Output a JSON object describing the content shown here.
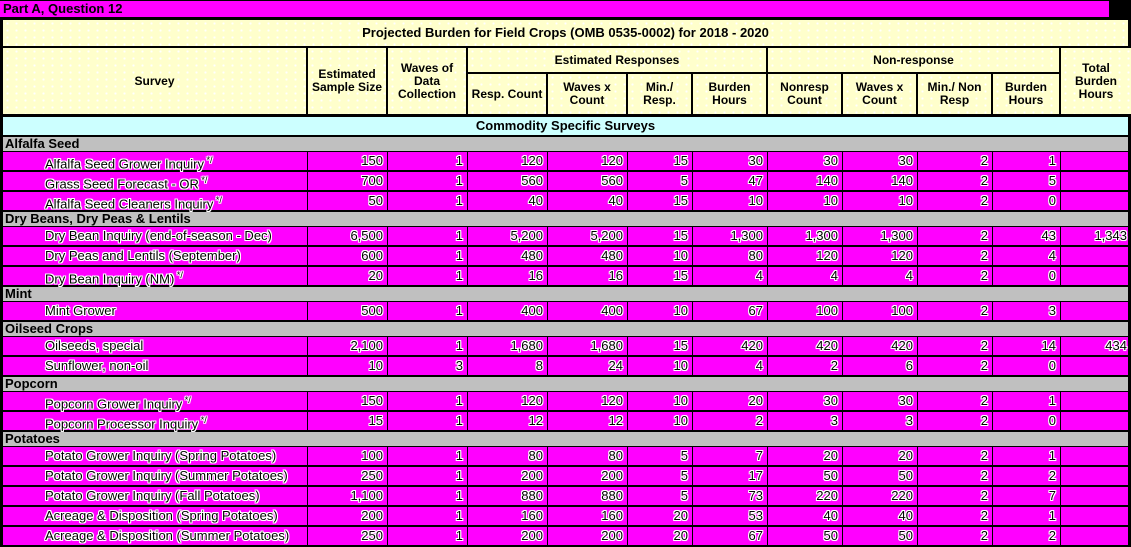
{
  "colors": {
    "row_bg": "#FF00FF",
    "header_bg": "#FFFFCC",
    "band_bg": "#CCFFFF",
    "section_bg": "#C0C0C0",
    "grid_line": "#000000"
  },
  "page_title": "Part A, Question 12",
  "table": {
    "title": "Projected Burden for Field Crops (OMB 0535-0002) for 2018 - 2020",
    "band": "Commodity Specific Surveys",
    "columns": {
      "survey": "Survey",
      "sample_size": "Estimated Sample Size",
      "waves": "Waves of Data Collection",
      "est_responses_group": "Estimated Responses",
      "resp_count": "Resp. Count",
      "resp_waves_x_count": "Waves x Count",
      "min_resp": "Min./ Resp.",
      "resp_burden_hours": "Burden Hours",
      "nonresponse_group": "Non-response",
      "nonresp_count": "Nonresp Count",
      "nonresp_waves_x_count": "Waves x Count",
      "min_nonresp": "Min./ Non Resp",
      "nonresp_burden_hours": "Burden Hours",
      "total_burden_hours": "Total Burden Hours"
    },
    "sections": [
      {
        "name": "Alfalfa Seed",
        "rows": [
          {
            "survey": "Alfalfa Seed Grower  Inquiry",
            "footnote": "*/",
            "values": [
              "150",
              "1",
              "120",
              "120",
              "15",
              "30",
              "30",
              "30",
              "2",
              "1",
              ""
            ]
          },
          {
            "survey": "Grass Seed Forecast - OR",
            "footnote": "*/",
            "values": [
              "700",
              "1",
              "560",
              "560",
              "5",
              "47",
              "140",
              "140",
              "2",
              "5",
              ""
            ]
          },
          {
            "survey": "Alfalfa Seed Cleaners Inquiry",
            "footnote": "*/",
            "values": [
              "50",
              "1",
              "40",
              "40",
              "15",
              "10",
              "10",
              "10",
              "2",
              "0",
              ""
            ]
          }
        ]
      },
      {
        "name": "Dry Beans, Dry Peas & Lentils",
        "rows": [
          {
            "survey": "Dry Bean Inquiry (end-of-season - Dec)",
            "footnote": "",
            "values": [
              "6,500",
              "1",
              "5,200",
              "5,200",
              "15",
              "1,300",
              "1,300",
              "1,300",
              "2",
              "43",
              "1,343"
            ]
          },
          {
            "survey": "Dry Peas and Lentils (September)",
            "footnote": "",
            "values": [
              "600",
              "1",
              "480",
              "480",
              "10",
              "80",
              "120",
              "120",
              "2",
              "4",
              ""
            ]
          },
          {
            "survey": "Dry Bean Inquiry (NM)",
            "footnote": "*/",
            "values": [
              "20",
              "1",
              "16",
              "16",
              "15",
              "4",
              "4",
              "4",
              "2",
              "0",
              ""
            ]
          }
        ]
      },
      {
        "name": "Mint",
        "rows": [
          {
            "survey": "Mint Grower",
            "footnote": "",
            "values": [
              "500",
              "1",
              "400",
              "400",
              "10",
              "67",
              "100",
              "100",
              "2",
              "3",
              ""
            ]
          }
        ]
      },
      {
        "name": "Oilseed Crops",
        "rows": [
          {
            "survey": "Oilseeds, special",
            "footnote": "",
            "values": [
              "2,100",
              "1",
              "1,680",
              "1,680",
              "15",
              "420",
              "420",
              "420",
              "2",
              "14",
              "434"
            ]
          },
          {
            "survey": "Sunflower, non-oil",
            "footnote": "",
            "values": [
              "10",
              "3",
              "8",
              "24",
              "10",
              "4",
              "2",
              "6",
              "2",
              "0",
              ""
            ]
          }
        ]
      },
      {
        "name": "Popcorn",
        "rows": [
          {
            "survey": "Popcorn Grower Inquiry",
            "footnote": "*/",
            "values": [
              "150",
              "1",
              "120",
              "120",
              "10",
              "20",
              "30",
              "30",
              "2",
              "1",
              ""
            ]
          },
          {
            "survey": "Popcorn Processor Inquiry",
            "footnote": "*/",
            "values": [
              "15",
              "1",
              "12",
              "12",
              "10",
              "2",
              "3",
              "3",
              "2",
              "0",
              ""
            ]
          }
        ]
      },
      {
        "name": "Potatoes",
        "rows": [
          {
            "survey": "Potato Grower Inquiry (Spring Potatoes)",
            "footnote": "",
            "values": [
              "100",
              "1",
              "80",
              "80",
              "5",
              "7",
              "20",
              "20",
              "2",
              "1",
              ""
            ]
          },
          {
            "survey": "Potato Grower Inquiry (Summer Potatoes)",
            "footnote": "",
            "values": [
              "250",
              "1",
              "200",
              "200",
              "5",
              "17",
              "50",
              "50",
              "2",
              "2",
              ""
            ]
          },
          {
            "survey": "Potato Grower Inquiry (Fall Potatoes)",
            "footnote": "",
            "values": [
              "1,100",
              "1",
              "880",
              "880",
              "5",
              "73",
              "220",
              "220",
              "2",
              "7",
              ""
            ]
          },
          {
            "survey": "Acreage & Disposition (Spring Potatoes)",
            "footnote": "",
            "values": [
              "200",
              "1",
              "160",
              "160",
              "20",
              "53",
              "40",
              "40",
              "2",
              "1",
              ""
            ]
          },
          {
            "survey": "Acreage & Disposition (Summer Potatoes)",
            "footnote": "",
            "values": [
              "250",
              "1",
              "200",
              "200",
              "20",
              "67",
              "50",
              "50",
              "2",
              "2",
              ""
            ]
          }
        ]
      }
    ]
  }
}
